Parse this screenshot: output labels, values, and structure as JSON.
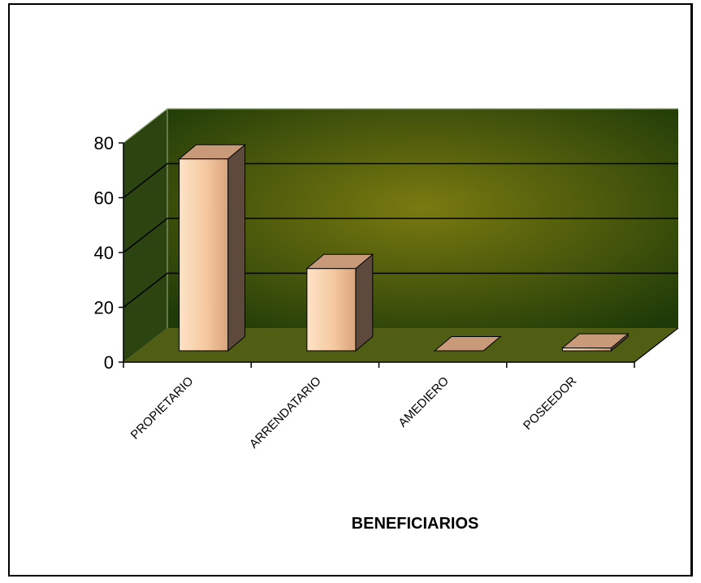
{
  "chart_data": {
    "type": "bar",
    "categories": [
      "PROPIETARIO",
      "ARRENDATARIO",
      "AMEDIERO",
      "POSEEDOR"
    ],
    "values": [
      70,
      30,
      0,
      1
    ],
    "title": "",
    "xlabel": "BENEFICIARIOS",
    "ylabel": "",
    "ylim": [
      0,
      80
    ],
    "yticks": [
      "0",
      "20",
      "40",
      "60",
      "80"
    ],
    "style": "3d-column",
    "grid": true,
    "legend": "none",
    "colors": {
      "bar_front": "#f5c8a0",
      "bar_side": "#5e4a3c",
      "bar_top": "#c89a7a",
      "wall_center": "#7a7a10",
      "wall_edge": "#1e3a08",
      "floor": "#4f5e12",
      "gridline": "#000000"
    }
  }
}
